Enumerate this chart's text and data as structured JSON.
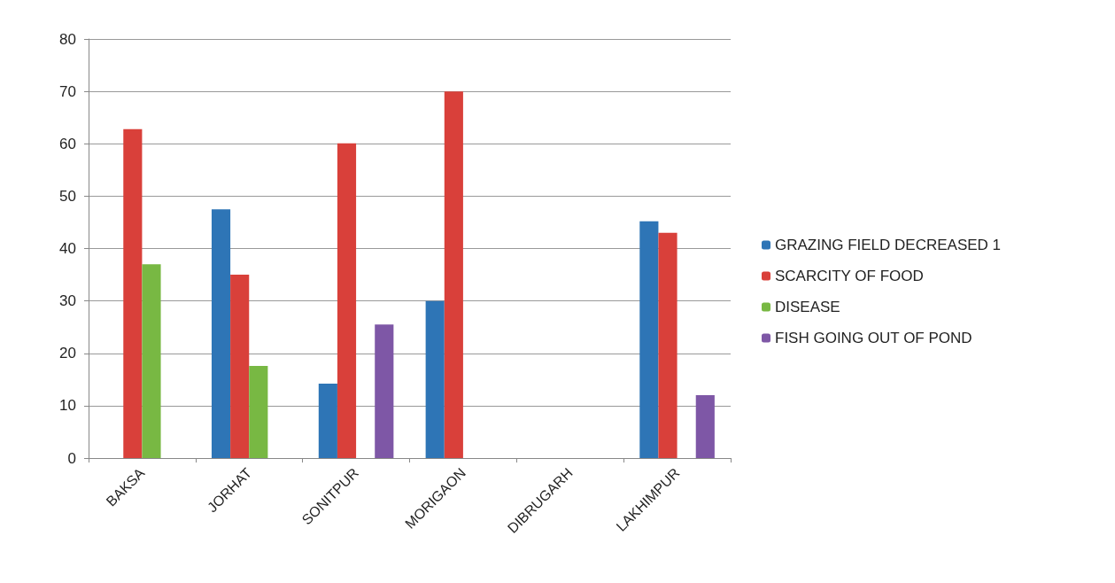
{
  "chart_data": {
    "type": "bar",
    "categories": [
      "BAKSA",
      "JORHAT",
      "SONITPUR",
      "MORIGAON",
      "DIBRUGARH",
      "LAKHIMPUR"
    ],
    "series": [
      {
        "name": "GRAZING FIELD DECREASED 1",
        "color": "#2e75b6",
        "values": [
          null,
          47.5,
          14.2,
          30,
          null,
          45.2
        ]
      },
      {
        "name": "SCARCITY OF FOOD",
        "color": "#d9403a",
        "values": [
          62.8,
          35,
          60.1,
          70,
          null,
          43
        ]
      },
      {
        "name": "DISEASE",
        "color": "#78b843",
        "values": [
          37,
          17.6,
          null,
          null,
          null,
          null
        ]
      },
      {
        "name": "FISH GOING OUT OF POND",
        "color": "#7e57a6",
        "values": [
          null,
          null,
          25.5,
          null,
          null,
          12
        ]
      }
    ],
    "ylim": [
      0,
      80
    ],
    "yticks": [
      0,
      10,
      20,
      30,
      40,
      50,
      60,
      70,
      80
    ],
    "grid": "y",
    "legend": "right"
  }
}
